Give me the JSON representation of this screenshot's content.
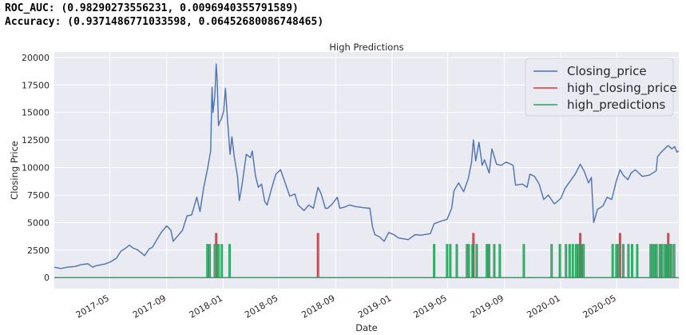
{
  "output": {
    "roc_line": "ROC_AUC: (0.98290273556231, 0.0096940355791589)",
    "acc_line": "Accuracy: (0.9371486771033598, 0.06452680086748465)"
  },
  "colors": {
    "background": "#eaeaf2",
    "grid": "#ffffff",
    "closing": "#4c72b0",
    "high_closing": "#d9363e",
    "predictions": "#2ca25f"
  },
  "chart_data": {
    "type": "line",
    "title": "High Predictions",
    "xlabel": "Date",
    "ylabel": "Closing Price",
    "xlim": [
      "2017-01-01",
      "2020-09-12"
    ],
    "ylim": [
      -1000,
      20500
    ],
    "grid": true,
    "legend_position": "top-right",
    "x_ticks": [
      "2017-05",
      "2017-09",
      "2018-01",
      "2018-05",
      "2018-09",
      "2019-01",
      "2019-05",
      "2019-09",
      "2020-01",
      "2020-05"
    ],
    "y_ticks": [
      0,
      2500,
      5000,
      7500,
      10000,
      12500,
      15000,
      17500,
      20000
    ],
    "series": [
      {
        "name": "Closing_price",
        "points": [
          [
            "2017-01-01",
            950
          ],
          [
            "2017-01-15",
            830
          ],
          [
            "2017-02-01",
            970
          ],
          [
            "2017-02-15",
            1010
          ],
          [
            "2017-03-01",
            1190
          ],
          [
            "2017-03-15",
            1250
          ],
          [
            "2017-03-25",
            950
          ],
          [
            "2017-04-01",
            1080
          ],
          [
            "2017-04-20",
            1230
          ],
          [
            "2017-05-01",
            1400
          ],
          [
            "2017-05-15",
            1750
          ],
          [
            "2017-05-25",
            2400
          ],
          [
            "2017-06-05",
            2700
          ],
          [
            "2017-06-12",
            2950
          ],
          [
            "2017-06-20",
            2700
          ],
          [
            "2017-07-01",
            2500
          ],
          [
            "2017-07-15",
            2000
          ],
          [
            "2017-07-25",
            2600
          ],
          [
            "2017-08-01",
            2750
          ],
          [
            "2017-08-10",
            3400
          ],
          [
            "2017-08-20",
            4100
          ],
          [
            "2017-09-01",
            4700
          ],
          [
            "2017-09-10",
            4300
          ],
          [
            "2017-09-15",
            3300
          ],
          [
            "2017-09-25",
            3800
          ],
          [
            "2017-10-05",
            4300
          ],
          [
            "2017-10-15",
            5600
          ],
          [
            "2017-10-25",
            5700
          ],
          [
            "2017-11-05",
            7300
          ],
          [
            "2017-11-12",
            6000
          ],
          [
            "2017-11-20",
            8200
          ],
          [
            "2017-11-28",
            9800
          ],
          [
            "2017-12-05",
            11500
          ],
          [
            "2017-12-08",
            17300
          ],
          [
            "2017-12-10",
            15000
          ],
          [
            "2017-12-14",
            16500
          ],
          [
            "2017-12-17",
            19400
          ],
          [
            "2017-12-19",
            18000
          ],
          [
            "2017-12-22",
            13800
          ],
          [
            "2017-12-25",
            14200
          ],
          [
            "2017-12-28",
            14400
          ],
          [
            "2018-01-02",
            15100
          ],
          [
            "2018-01-06",
            17200
          ],
          [
            "2018-01-10",
            14600
          ],
          [
            "2018-01-16",
            11200
          ],
          [
            "2018-01-20",
            12800
          ],
          [
            "2018-01-25",
            11000
          ],
          [
            "2018-02-01",
            9200
          ],
          [
            "2018-02-05",
            7000
          ],
          [
            "2018-02-10",
            8200
          ],
          [
            "2018-02-20",
            11200
          ],
          [
            "2018-03-01",
            10900
          ],
          [
            "2018-03-05",
            11500
          ],
          [
            "2018-03-12",
            9200
          ],
          [
            "2018-03-18",
            8200
          ],
          [
            "2018-03-25",
            8500
          ],
          [
            "2018-04-01",
            6900
          ],
          [
            "2018-04-06",
            6600
          ],
          [
            "2018-04-15",
            8000
          ],
          [
            "2018-04-25",
            9400
          ],
          [
            "2018-05-05",
            9800
          ],
          [
            "2018-05-15",
            8600
          ],
          [
            "2018-05-25",
            7400
          ],
          [
            "2018-06-05",
            7600
          ],
          [
            "2018-06-12",
            6600
          ],
          [
            "2018-06-25",
            6100
          ],
          [
            "2018-07-05",
            6600
          ],
          [
            "2018-07-15",
            6300
          ],
          [
            "2018-07-25",
            8200
          ],
          [
            "2018-08-01",
            7600
          ],
          [
            "2018-08-10",
            6300
          ],
          [
            "2018-08-15",
            6300
          ],
          [
            "2018-08-25",
            6700
          ],
          [
            "2018-09-05",
            7300
          ],
          [
            "2018-09-10",
            6300
          ],
          [
            "2018-09-20",
            6400
          ],
          [
            "2018-10-01",
            6600
          ],
          [
            "2018-10-15",
            6450
          ],
          [
            "2018-11-01",
            6350
          ],
          [
            "2018-11-14",
            6300
          ],
          [
            "2018-11-20",
            4600
          ],
          [
            "2018-11-25",
            3900
          ],
          [
            "2018-12-05",
            3700
          ],
          [
            "2018-12-15",
            3300
          ],
          [
            "2018-12-25",
            4100
          ],
          [
            "2019-01-05",
            3900
          ],
          [
            "2019-01-15",
            3600
          ],
          [
            "2019-02-05",
            3450
          ],
          [
            "2019-02-20",
            3900
          ],
          [
            "2019-03-05",
            3850
          ],
          [
            "2019-03-25",
            4000
          ],
          [
            "2019-04-02",
            4900
          ],
          [
            "2019-04-15",
            5100
          ],
          [
            "2019-04-30",
            5300
          ],
          [
            "2019-05-10",
            6300
          ],
          [
            "2019-05-15",
            7900
          ],
          [
            "2019-05-25",
            8600
          ],
          [
            "2019-06-05",
            7800
          ],
          [
            "2019-06-15",
            9000
          ],
          [
            "2019-06-22",
            10500
          ],
          [
            "2019-06-26",
            12500
          ],
          [
            "2019-07-01",
            10600
          ],
          [
            "2019-07-08",
            12300
          ],
          [
            "2019-07-15",
            10200
          ],
          [
            "2019-07-20",
            10700
          ],
          [
            "2019-07-30",
            9500
          ],
          [
            "2019-08-05",
            11700
          ],
          [
            "2019-08-15",
            10300
          ],
          [
            "2019-08-25",
            10200
          ],
          [
            "2019-09-05",
            10500
          ],
          [
            "2019-09-20",
            10200
          ],
          [
            "2019-09-25",
            8400
          ],
          [
            "2019-10-10",
            8500
          ],
          [
            "2019-10-20",
            8200
          ],
          [
            "2019-10-26",
            9400
          ],
          [
            "2019-11-05",
            9200
          ],
          [
            "2019-11-15",
            8500
          ],
          [
            "2019-11-25",
            7100
          ],
          [
            "2019-12-05",
            7500
          ],
          [
            "2019-12-18",
            6700
          ],
          [
            "2020-01-01",
            7200
          ],
          [
            "2020-01-10",
            8100
          ],
          [
            "2020-01-20",
            8700
          ],
          [
            "2020-02-01",
            9400
          ],
          [
            "2020-02-12",
            10300
          ],
          [
            "2020-02-20",
            9700
          ],
          [
            "2020-03-01",
            8600
          ],
          [
            "2020-03-07",
            9100
          ],
          [
            "2020-03-12",
            5000
          ],
          [
            "2020-03-20",
            6200
          ],
          [
            "2020-04-01",
            6500
          ],
          [
            "2020-04-10",
            7300
          ],
          [
            "2020-04-20",
            7100
          ],
          [
            "2020-04-30",
            8800
          ],
          [
            "2020-05-08",
            9800
          ],
          [
            "2020-05-15",
            9300
          ],
          [
            "2020-05-25",
            8900
          ],
          [
            "2020-06-01",
            9500
          ],
          [
            "2020-06-10",
            9800
          ],
          [
            "2020-06-25",
            9200
          ],
          [
            "2020-07-10",
            9300
          ],
          [
            "2020-07-25",
            9700
          ],
          [
            "2020-07-28",
            11000
          ],
          [
            "2020-08-05",
            11400
          ],
          [
            "2020-08-15",
            11800
          ],
          [
            "2020-08-20",
            12000
          ],
          [
            "2020-08-28",
            11700
          ],
          [
            "2020-09-03",
            11900
          ],
          [
            "2020-09-08",
            11400
          ],
          [
            "2020-09-12",
            11500
          ]
        ]
      },
      {
        "name": "high_closing_price",
        "baseline": 0,
        "spike_value": 4000,
        "spikes": [
          "2017-12-17",
          "2018-07-25",
          "2019-06-26",
          "2020-02-12",
          "2020-05-08",
          "2020-08-20"
        ]
      },
      {
        "name": "high_predictions",
        "baseline": 0,
        "spike_value": 3000,
        "spikes": [
          "2017-11-28",
          "2017-12-03",
          "2017-12-14",
          "2017-12-22",
          "2017-12-29",
          "2018-01-15",
          "2019-04-02",
          "2019-04-30",
          "2019-05-07",
          "2019-05-21",
          "2019-06-12",
          "2019-06-16",
          "2019-06-24",
          "2019-07-03",
          "2019-07-25",
          "2019-07-30",
          "2019-08-10",
          "2019-08-22",
          "2019-10-13",
          "2019-12-12",
          "2019-12-30",
          "2020-01-12",
          "2020-01-20",
          "2020-01-27",
          "2020-02-03",
          "2020-02-08",
          "2020-02-14",
          "2020-02-19",
          "2020-04-22",
          "2020-04-30",
          "2020-05-05",
          "2020-05-15",
          "2020-05-26",
          "2020-06-03",
          "2020-06-14",
          "2020-07-13",
          "2020-07-17",
          "2020-07-22",
          "2020-07-26",
          "2020-08-02",
          "2020-08-07",
          "2020-08-13",
          "2020-08-18",
          "2020-08-23",
          "2020-08-27",
          "2020-09-02"
        ]
      }
    ]
  }
}
